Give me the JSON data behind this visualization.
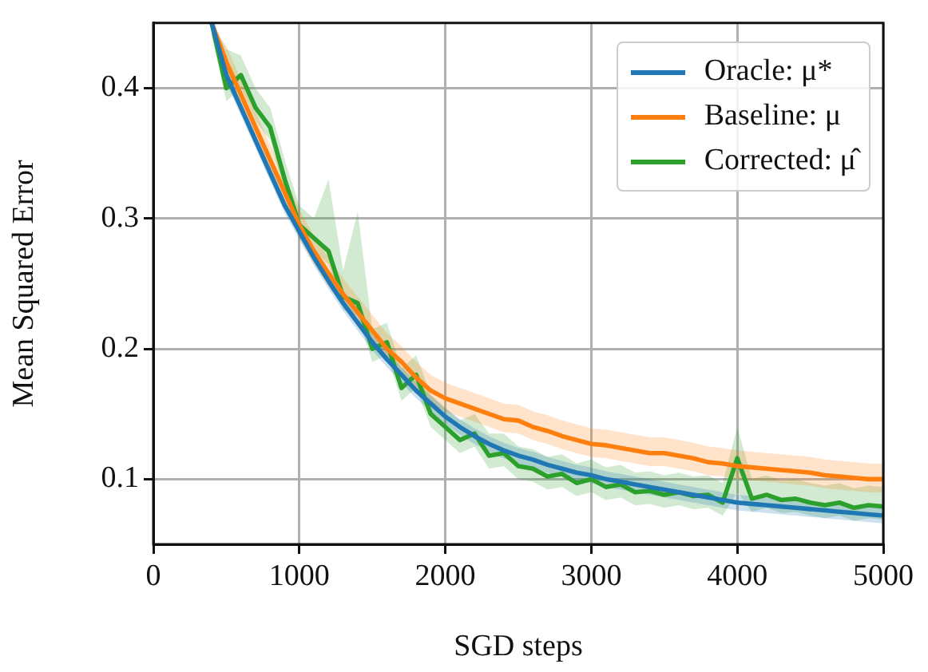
{
  "chart_data": {
    "type": "line",
    "xlabel": "SGD steps",
    "ylabel": "Mean Squared Error",
    "x": [
      400,
      500,
      600,
      700,
      800,
      900,
      1000,
      1100,
      1200,
      1300,
      1400,
      1500,
      1600,
      1700,
      1800,
      1900,
      2000,
      2100,
      2200,
      2300,
      2400,
      2500,
      2600,
      2700,
      2800,
      2900,
      3000,
      3100,
      3200,
      3300,
      3400,
      3500,
      3600,
      3700,
      3800,
      3900,
      4000,
      4100,
      4200,
      4300,
      4400,
      4500,
      4600,
      4700,
      4800,
      4900,
      5000
    ],
    "xlim": [
      0,
      5000
    ],
    "xticks": [
      0,
      1000,
      2000,
      3000,
      4000,
      5000
    ],
    "ylim": [
      0.05,
      0.45
    ],
    "yticks": [
      0.1,
      0.2,
      0.3,
      0.4
    ],
    "grid": true,
    "legend": "top right",
    "marker": "none",
    "line_style": "solid",
    "series": [
      {
        "name": "Oracle: μ*",
        "color": "#1f77b4",
        "values": [
          0.45,
          0.41,
          0.385,
          0.36,
          0.335,
          0.31,
          0.29,
          0.27,
          0.252,
          0.235,
          0.22,
          0.205,
          0.192,
          0.18,
          0.168,
          0.158,
          0.148,
          0.14,
          0.133,
          0.127,
          0.122,
          0.118,
          0.115,
          0.111,
          0.108,
          0.105,
          0.103,
          0.1,
          0.098,
          0.096,
          0.094,
          0.092,
          0.09,
          0.088,
          0.086,
          0.084,
          0.082,
          0.081,
          0.08,
          0.079,
          0.078,
          0.077,
          0.076,
          0.075,
          0.074,
          0.073,
          0.072
        ],
        "lower": [
          0.444,
          0.404,
          0.379,
          0.354,
          0.329,
          0.304,
          0.284,
          0.264,
          0.246,
          0.229,
          0.214,
          0.199,
          0.186,
          0.174,
          0.162,
          0.152,
          0.142,
          0.134,
          0.127,
          0.121,
          0.116,
          0.112,
          0.109,
          0.105,
          0.102,
          0.099,
          0.097,
          0.094,
          0.092,
          0.09,
          0.088,
          0.086,
          0.084,
          0.082,
          0.08,
          0.078,
          0.076,
          0.075,
          0.074,
          0.073,
          0.072,
          0.071,
          0.07,
          0.069,
          0.068,
          0.067,
          0.066
        ],
        "upper": [
          0.45,
          0.416,
          0.391,
          0.366,
          0.341,
          0.316,
          0.296,
          0.276,
          0.258,
          0.241,
          0.226,
          0.211,
          0.198,
          0.186,
          0.174,
          0.164,
          0.154,
          0.146,
          0.139,
          0.133,
          0.128,
          0.124,
          0.121,
          0.117,
          0.114,
          0.111,
          0.109,
          0.106,
          0.104,
          0.102,
          0.1,
          0.098,
          0.096,
          0.094,
          0.092,
          0.09,
          0.088,
          0.087,
          0.086,
          0.085,
          0.084,
          0.083,
          0.082,
          0.081,
          0.08,
          0.079,
          0.078
        ]
      },
      {
        "name": "Baseline: μ",
        "color": "#ff7f0e",
        "values": [
          0.45,
          0.42,
          0.395,
          0.37,
          0.345,
          0.32,
          0.295,
          0.275,
          0.258,
          0.242,
          0.228,
          0.214,
          0.2,
          0.19,
          0.178,
          0.168,
          0.162,
          0.158,
          0.154,
          0.15,
          0.146,
          0.145,
          0.14,
          0.137,
          0.133,
          0.13,
          0.127,
          0.126,
          0.124,
          0.122,
          0.12,
          0.12,
          0.118,
          0.116,
          0.113,
          0.112,
          0.11,
          0.109,
          0.108,
          0.107,
          0.106,
          0.105,
          0.103,
          0.102,
          0.101,
          0.1,
          0.1
        ],
        "lower": [
          0.44,
          0.41,
          0.385,
          0.36,
          0.335,
          0.31,
          0.285,
          0.265,
          0.248,
          0.232,
          0.218,
          0.204,
          0.19,
          0.18,
          0.168,
          0.158,
          0.152,
          0.148,
          0.144,
          0.14,
          0.136,
          0.135,
          0.13,
          0.127,
          0.123,
          0.12,
          0.117,
          0.116,
          0.114,
          0.112,
          0.11,
          0.11,
          0.108,
          0.106,
          0.103,
          0.102,
          0.1,
          0.099,
          0.098,
          0.097,
          0.096,
          0.095,
          0.093,
          0.092,
          0.091,
          0.09,
          0.09
        ],
        "upper": [
          0.45,
          0.432,
          0.407,
          0.382,
          0.357,
          0.332,
          0.307,
          0.287,
          0.27,
          0.254,
          0.24,
          0.226,
          0.212,
          0.202,
          0.19,
          0.18,
          0.174,
          0.17,
          0.166,
          0.162,
          0.158,
          0.157,
          0.152,
          0.149,
          0.145,
          0.142,
          0.139,
          0.138,
          0.136,
          0.134,
          0.132,
          0.132,
          0.13,
          0.128,
          0.125,
          0.124,
          0.122,
          0.121,
          0.12,
          0.119,
          0.118,
          0.117,
          0.115,
          0.114,
          0.113,
          0.112,
          0.112
        ]
      },
      {
        "name": "Corrected: μ̂",
        "color": "#2ca02c",
        "values": [
          0.45,
          0.4,
          0.41,
          0.385,
          0.37,
          0.33,
          0.295,
          0.285,
          0.275,
          0.24,
          0.235,
          0.2,
          0.205,
          0.17,
          0.18,
          0.15,
          0.14,
          0.13,
          0.135,
          0.118,
          0.12,
          0.11,
          0.108,
          0.102,
          0.104,
          0.097,
          0.1,
          0.094,
          0.096,
          0.09,
          0.091,
          0.088,
          0.09,
          0.087,
          0.088,
          0.082,
          0.116,
          0.085,
          0.088,
          0.084,
          0.085,
          0.082,
          0.08,
          0.082,
          0.078,
          0.08,
          0.079
        ],
        "lower": [
          0.44,
          0.39,
          0.4,
          0.375,
          0.36,
          0.32,
          0.285,
          0.275,
          0.265,
          0.23,
          0.225,
          0.19,
          0.195,
          0.16,
          0.17,
          0.14,
          0.13,
          0.12,
          0.125,
          0.108,
          0.11,
          0.1,
          0.098,
          0.092,
          0.094,
          0.087,
          0.09,
          0.084,
          0.086,
          0.08,
          0.081,
          0.078,
          0.08,
          0.077,
          0.078,
          0.072,
          0.09,
          0.075,
          0.078,
          0.074,
          0.075,
          0.072,
          0.07,
          0.072,
          0.068,
          0.07,
          0.069
        ],
        "upper": [
          0.45,
          0.43,
          0.425,
          0.4,
          0.385,
          0.345,
          0.31,
          0.3,
          0.33,
          0.26,
          0.305,
          0.215,
          0.22,
          0.185,
          0.195,
          0.165,
          0.155,
          0.145,
          0.15,
          0.135,
          0.135,
          0.125,
          0.123,
          0.117,
          0.119,
          0.112,
          0.115,
          0.109,
          0.111,
          0.105,
          0.106,
          0.103,
          0.105,
          0.102,
          0.103,
          0.097,
          0.14,
          0.1,
          0.103,
          0.099,
          0.1,
          0.097,
          0.095,
          0.097,
          0.093,
          0.095,
          0.094
        ]
      }
    ]
  }
}
